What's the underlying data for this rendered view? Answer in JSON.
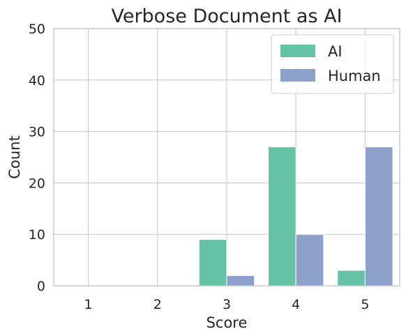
{
  "chart_data": {
    "type": "bar",
    "title": "Verbose Document as AI",
    "xlabel": "Score",
    "ylabel": "Count",
    "categories": [
      "1",
      "2",
      "3",
      "4",
      "5"
    ],
    "ylim": [
      0,
      50
    ],
    "yticks": [
      "0",
      "10",
      "20",
      "30",
      "40",
      "50"
    ],
    "grid": true,
    "legend_position": "top-right",
    "series": [
      {
        "name": "AI",
        "color": "#66c2a5",
        "values": [
          0,
          0,
          9,
          27,
          3
        ]
      },
      {
        "name": "Human",
        "color": "#8da0cb",
        "values": [
          0,
          0,
          2,
          10,
          27
        ]
      }
    ]
  }
}
